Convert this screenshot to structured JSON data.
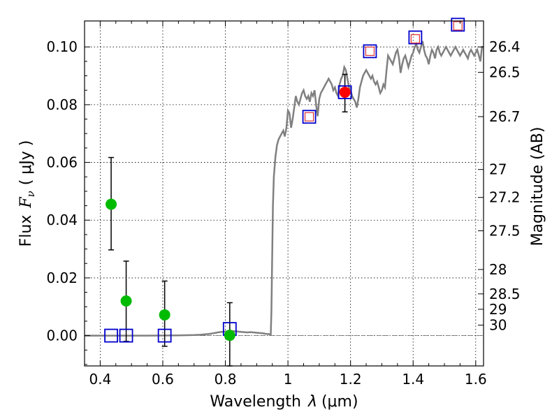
{
  "chart_data": {
    "type": "scatter",
    "xlabel": "Wavelength",
    "xlabel_symbol": "λ",
    "xlabel_unit": "(μm)",
    "ylabel": "Flux",
    "ylabel_symbol": "F",
    "ylabel_subscript": "ν",
    "ylabel_unit": "( μJy )",
    "y2label": "Magnitude (AB)",
    "xlim": [
      0.35,
      1.625
    ],
    "ylim": [
      -0.0105,
      0.109
    ],
    "grid": true,
    "x_ticks": [
      {
        "value": 0.4,
        "label": "0.4"
      },
      {
        "value": 0.6,
        "label": "0.6"
      },
      {
        "value": 0.8,
        "label": "0.8"
      },
      {
        "value": 1.0,
        "label": "1"
      },
      {
        "value": 1.2,
        "label": "1.2"
      },
      {
        "value": 1.4,
        "label": "1.4"
      },
      {
        "value": 1.6,
        "label": "1.6"
      }
    ],
    "y_ticks": [
      {
        "value": 0.0,
        "label": "0.00"
      },
      {
        "value": 0.02,
        "label": "0.02"
      },
      {
        "value": 0.04,
        "label": "0.04"
      },
      {
        "value": 0.06,
        "label": "0.06"
      },
      {
        "value": 0.08,
        "label": "0.08"
      },
      {
        "value": 0.1,
        "label": "0.10"
      }
    ],
    "mag_ticks": [
      {
        "value": 26.4,
        "label": "26.4"
      },
      {
        "value": 26.5,
        "label": "26.5"
      },
      {
        "value": 26.7,
        "label": "26.7"
      },
      {
        "value": 27.0,
        "label": "27"
      },
      {
        "value": 27.2,
        "label": "27.2"
      },
      {
        "value": 27.5,
        "label": "27.5"
      },
      {
        "value": 28.0,
        "label": "28"
      },
      {
        "value": 28.5,
        "label": "28.5"
      },
      {
        "value": 29.0,
        "label": "29"
      },
      {
        "value": 30.0,
        "label": "30"
      }
    ],
    "zero_line": 0.0,
    "sed_model": {
      "color": "#808080",
      "x": [
        0.35,
        0.45,
        0.55,
        0.65,
        0.7,
        0.72,
        0.74,
        0.75,
        0.76,
        0.77,
        0.78,
        0.79,
        0.8,
        0.81,
        0.82,
        0.83,
        0.84,
        0.85,
        0.86,
        0.87,
        0.88,
        0.89,
        0.9,
        0.91,
        0.92,
        0.93,
        0.94,
        0.945,
        0.947,
        0.95,
        0.952,
        0.955,
        0.96,
        0.965,
        0.97,
        0.975,
        0.98,
        0.985,
        0.99,
        0.995,
        1.0,
        1.005,
        1.01,
        1.015,
        1.02,
        1.025,
        1.03,
        1.035,
        1.04,
        1.045,
        1.05,
        1.055,
        1.06,
        1.065,
        1.07,
        1.075,
        1.08,
        1.085,
        1.09,
        1.095,
        1.1,
        1.105,
        1.11,
        1.115,
        1.12,
        1.125,
        1.13,
        1.135,
        1.14,
        1.145,
        1.15,
        1.155,
        1.16,
        1.165,
        1.17,
        1.175,
        1.18,
        1.185,
        1.19,
        1.195,
        1.2,
        1.205,
        1.21,
        1.215,
        1.22,
        1.225,
        1.23,
        1.235,
        1.24,
        1.245,
        1.25,
        1.255,
        1.26,
        1.265,
        1.27,
        1.275,
        1.28,
        1.285,
        1.29,
        1.295,
        1.3,
        1.305,
        1.31,
        1.315,
        1.32,
        1.325,
        1.33,
        1.335,
        1.34,
        1.345,
        1.35,
        1.355,
        1.36,
        1.365,
        1.37,
        1.375,
        1.38,
        1.385,
        1.39,
        1.395,
        1.4,
        1.405,
        1.41,
        1.415,
        1.42,
        1.425,
        1.43,
        1.435,
        1.44,
        1.445,
        1.45,
        1.455,
        1.46,
        1.465,
        1.47,
        1.475,
        1.48,
        1.485,
        1.49,
        1.495,
        1.5,
        1.505,
        1.51,
        1.515,
        1.52,
        1.525,
        1.53,
        1.535,
        1.54,
        1.545,
        1.55,
        1.555,
        1.56,
        1.565,
        1.57,
        1.575,
        1.58,
        1.585,
        1.59,
        1.595,
        1.6,
        1.605,
        1.61,
        1.615,
        1.62,
        1.625
      ],
      "y": [
        0.0,
        0.0,
        0.0,
        0.0001,
        0.0002,
        0.0003,
        0.0005,
        0.0006,
        0.0008,
        0.001,
        0.0012,
        0.0013,
        0.0014,
        0.0015,
        0.0016,
        0.0015,
        0.0014,
        0.0013,
        0.0012,
        0.0011,
        0.0012,
        0.0011,
        0.001,
        0.0009,
        0.0008,
        0.0006,
        0.0005,
        0.0004,
        0.008,
        0.03,
        0.045,
        0.055,
        0.062,
        0.066,
        0.068,
        0.069,
        0.07,
        0.071,
        0.069,
        0.072,
        0.078,
        0.077,
        0.072,
        0.075,
        0.079,
        0.083,
        0.081,
        0.08,
        0.082,
        0.084,
        0.085,
        0.083,
        0.082,
        0.083,
        0.081,
        0.084,
        0.083,
        0.085,
        0.08,
        0.076,
        0.082,
        0.084,
        0.085,
        0.086,
        0.087,
        0.088,
        0.089,
        0.088,
        0.087,
        0.085,
        0.086,
        0.084,
        0.083,
        0.087,
        0.089,
        0.09,
        0.093,
        0.092,
        0.089,
        0.086,
        0.085,
        0.083,
        0.082,
        0.081,
        0.079,
        0.082,
        0.086,
        0.088,
        0.09,
        0.091,
        0.092,
        0.091,
        0.09,
        0.089,
        0.09,
        0.088,
        0.087,
        0.088,
        0.086,
        0.084,
        0.085,
        0.087,
        0.086,
        0.092,
        0.097,
        0.096,
        0.095,
        0.094,
        0.096,
        0.098,
        0.099,
        0.096,
        0.091,
        0.094,
        0.096,
        0.097,
        0.095,
        0.093,
        0.095,
        0.097,
        0.098,
        0.1,
        0.101,
        0.099,
        0.098,
        0.1,
        0.102,
        0.099,
        0.097,
        0.096,
        0.094,
        0.097,
        0.099,
        0.098,
        0.096,
        0.099,
        0.1,
        0.098,
        0.097,
        0.098,
        0.099,
        0.1,
        0.099,
        0.098,
        0.097,
        0.098,
        0.099,
        0.1,
        0.099,
        0.098,
        0.097,
        0.098,
        0.099,
        0.098,
        0.097,
        0.096,
        0.098,
        0.099,
        0.098,
        0.097,
        0.098,
        0.099,
        0.097,
        0.095,
        0.1,
        0.1
      ]
    },
    "green_points": {
      "color": "#00bb00",
      "points": [
        {
          "x": 0.435,
          "y": 0.0455,
          "yerr_low": 0.0297,
          "yerr_high": 0.0617
        },
        {
          "x": 0.483,
          "y": 0.012,
          "yerr_low": -0.002,
          "yerr_high": 0.0258
        },
        {
          "x": 0.606,
          "y": 0.0072,
          "yerr_low": -0.0037,
          "yerr_high": 0.0189
        },
        {
          "x": 0.814,
          "y": 0.0001,
          "yerr_low": -0.0105,
          "yerr_high": 0.0114
        }
      ]
    },
    "red_point": {
      "color": "#ff0000",
      "x": 1.182,
      "y": 0.0843,
      "yerr_low": 0.0775,
      "yerr_high": 0.0905
    },
    "blue_squares": {
      "color": "#0000cc",
      "points": [
        {
          "x": 0.435,
          "y": 0.0
        },
        {
          "x": 0.483,
          "y": 0.0
        },
        {
          "x": 0.606,
          "y": 0.0
        },
        {
          "x": 0.814,
          "y": 0.0023
        },
        {
          "x": 1.068,
          "y": 0.0758
        },
        {
          "x": 1.182,
          "y": 0.0843
        },
        {
          "x": 1.262,
          "y": 0.0985
        },
        {
          "x": 1.407,
          "y": 0.1033
        },
        {
          "x": 1.543,
          "y": 0.1077
        }
      ]
    },
    "red_squares": {
      "color": "#dd3333",
      "points": [
        {
          "x": 1.068,
          "y": 0.0758
        },
        {
          "x": 1.262,
          "y": 0.0985
        },
        {
          "x": 1.407,
          "y": 0.1028
        },
        {
          "x": 1.543,
          "y": 0.1073
        }
      ]
    }
  }
}
